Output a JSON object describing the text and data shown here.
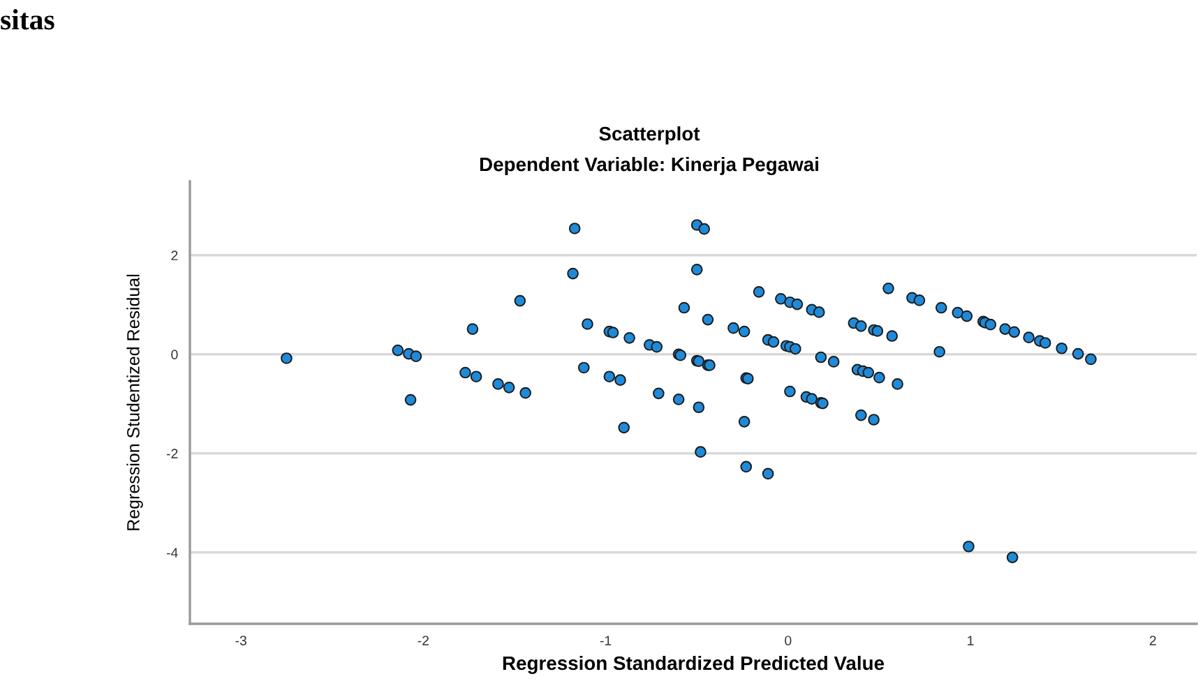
{
  "chart_data": {
    "type": "scatter",
    "title": "Scatterplot",
    "subtitle": "Dependent Variable: Kinerja Pegawai",
    "xlabel": "Regression Standardized Predicted Value",
    "ylabel": "Regression Studentized Residual",
    "annotations": [
      "sitas"
    ],
    "x": [
      -2.75,
      -2.14,
      -2.08,
      -2.04,
      -2.07,
      -1.73,
      -1.77,
      -1.71,
      -1.59,
      -1.53,
      -1.44,
      -1.47,
      -1.17,
      -1.18,
      -1.1,
      -1.12,
      -0.98,
      -0.96,
      -0.87,
      -0.98,
      -0.92,
      -0.9,
      -0.76,
      -0.72,
      -0.71,
      -0.6,
      -0.59,
      -0.6,
      -0.57,
      -0.5,
      -0.46,
      -0.5,
      -0.5,
      -0.49,
      -0.44,
      -0.44,
      -0.43,
      -0.49,
      -0.48,
      -0.3,
      -0.24,
      -0.23,
      -0.22,
      -0.24,
      -0.23,
      -0.11,
      -0.16,
      -0.11,
      -0.08,
      -0.04,
      0.01,
      0.05,
      -0.01,
      0.01,
      0.04,
      0.01,
      0.1,
      0.13,
      0.18,
      0.19,
      0.13,
      0.17,
      0.18,
      0.25,
      0.36,
      0.4,
      0.38,
      0.41,
      0.4,
      0.44,
      0.47,
      0.49,
      0.57,
      0.55,
      0.5,
      0.6,
      0.47,
      0.68,
      0.72,
      0.83,
      0.84,
      0.93,
      0.98,
      1.07,
      1.08,
      1.11,
      1.19,
      1.24,
      1.32,
      1.38,
      1.41,
      1.5,
      1.59,
      1.66,
      0.99,
      1.23
    ],
    "series": [
      {
        "color": "#1f8ad8",
        "values": [
          -0.08,
          0.08,
          0.01,
          -0.04,
          -0.92,
          0.51,
          -0.37,
          -0.45,
          -0.6,
          -0.67,
          -0.78,
          1.08,
          2.54,
          1.63,
          0.61,
          -0.27,
          0.46,
          0.44,
          0.33,
          -0.45,
          -0.52,
          -1.48,
          0.19,
          0.15,
          -0.79,
          0.0,
          -0.02,
          -0.91,
          0.94,
          2.61,
          2.53,
          1.71,
          -0.13,
          -0.14,
          0.7,
          -0.22,
          -0.22,
          -1.07,
          -1.97,
          0.53,
          0.46,
          -0.48,
          -0.49,
          -1.36,
          -2.27,
          -2.41,
          1.26,
          0.29,
          0.25,
          1.12,
          1.05,
          1.01,
          0.17,
          0.15,
          0.11,
          -0.75,
          -0.86,
          -0.9,
          -0.98,
          -0.99,
          0.9,
          0.85,
          -0.06,
          -0.15,
          0.63,
          0.57,
          -0.31,
          -0.34,
          -1.23,
          -0.37,
          0.49,
          0.47,
          0.37,
          1.33,
          -0.47,
          -0.6,
          -1.32,
          1.14,
          1.09,
          0.05,
          0.94,
          0.84,
          0.77,
          0.66,
          0.64,
          0.6,
          0.51,
          0.45,
          0.34,
          0.27,
          0.23,
          0.12,
          0.01,
          -0.1,
          -3.88,
          -4.1
        ]
      }
    ],
    "marker": "circle",
    "xlim": [
      -3.28,
      2.24
    ],
    "ylim": [
      -5.44,
      3.49
    ],
    "xticks": [
      -3,
      -2,
      -1,
      0,
      1,
      2
    ],
    "yticks": [
      -4,
      -2,
      0,
      2
    ],
    "grid": "y"
  }
}
